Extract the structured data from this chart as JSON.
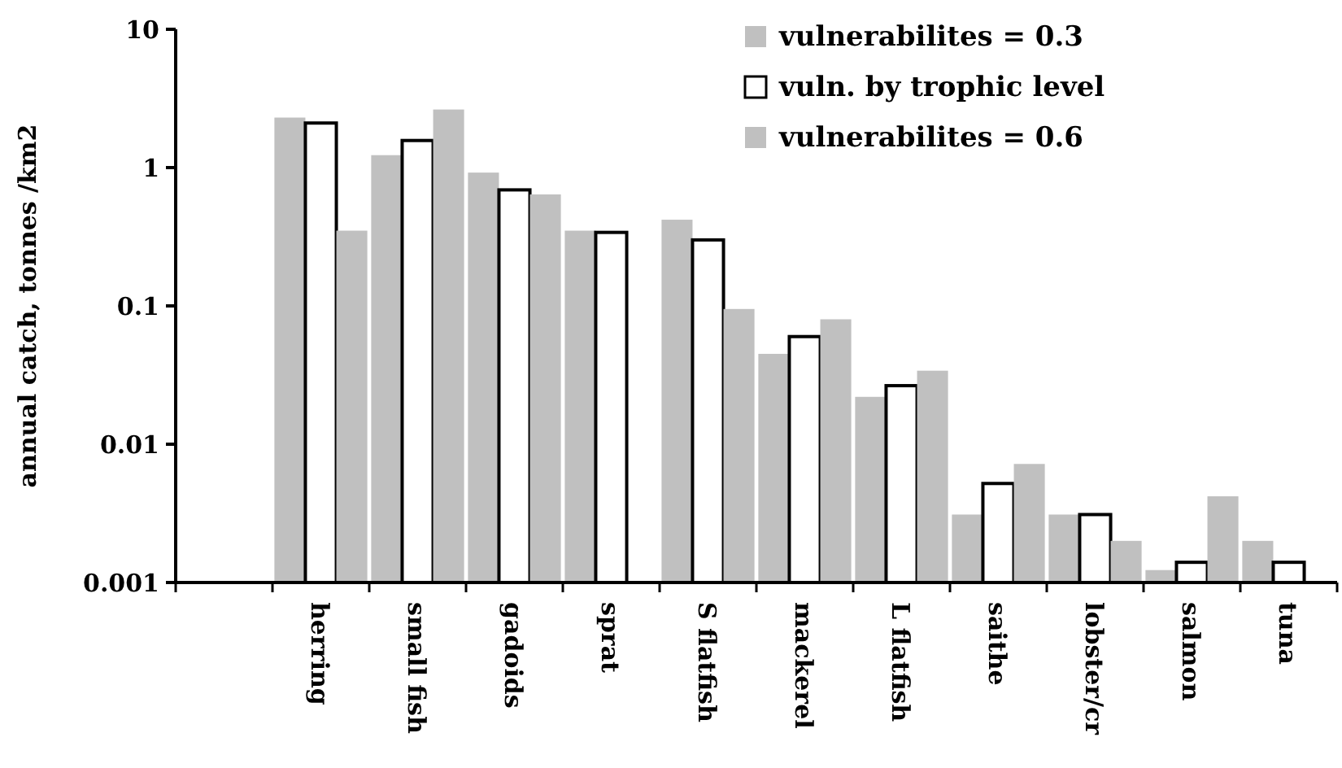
{
  "chart_data": {
    "type": "bar",
    "ylabel": "annual catch, tonnes /km2",
    "categories": [
      null,
      "herring",
      "small fish",
      "gadoids",
      "sprat",
      "S flatfish",
      "mackerel",
      "L flatfish",
      "saithe",
      "lobster/cr",
      "salmon",
      "tuna"
    ],
    "series": [
      {
        "name": "vulnerabilites = 0.3",
        "color": "#c0c0c0",
        "values": [
          null,
          2.3,
          1.23,
          0.92,
          0.35,
          0.42,
          0.045,
          0.022,
          0.0031,
          0.0031,
          0.00123,
          0.002
        ]
      },
      {
        "name": "vuln. by trophic level",
        "color": "#ffffff",
        "values": [
          null,
          2.1,
          1.57,
          0.69,
          0.34,
          0.3,
          0.06,
          0.0265,
          0.0052,
          0.0031,
          0.0014,
          0.0014
        ]
      },
      {
        "name": "vulnerabilites = 0.6",
        "color": "#c0c0c0",
        "values": [
          null,
          0.35,
          2.63,
          0.64,
          null,
          0.095,
          0.08,
          0.034,
          0.0072,
          0.002,
          0.0042,
          null
        ]
      }
    ],
    "log": true,
    "ylim": [
      0.001,
      10
    ],
    "yticks": [
      0.001,
      0.01,
      0.1,
      1,
      10
    ],
    "legend": "top right",
    "grid": false
  }
}
